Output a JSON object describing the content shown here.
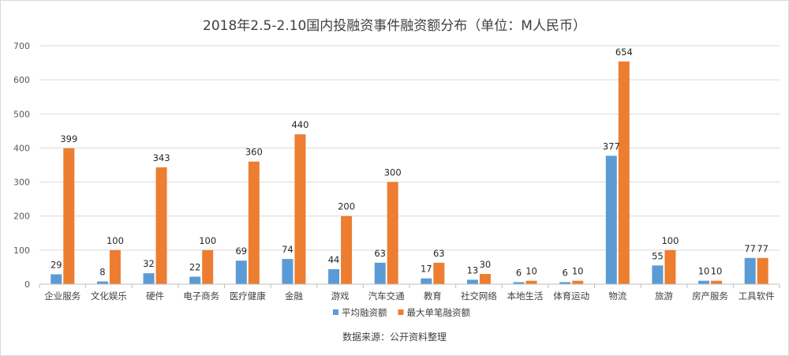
{
  "chart_data": {
    "type": "bar",
    "title": "2018年2.5-2.10国内投融资事件融资额分布（单位：M人民币）",
    "source": "数据来源：公开资料整理",
    "categories": [
      "企业服务",
      "文化娱乐",
      "硬件",
      "电子商务",
      "医疗健康",
      "金融",
      "游戏",
      "汽车交通",
      "教育",
      "社交网络",
      "本地生活",
      "体育运动",
      "物流",
      "旅游",
      "房产服务",
      "工具软件"
    ],
    "series": [
      {
        "name": "平均融资额",
        "color": "#5b9bd5",
        "values": [
          29,
          8,
          32,
          22,
          69,
          74,
          44,
          63,
          17,
          13,
          6,
          6,
          377,
          55,
          10,
          77
        ]
      },
      {
        "name": "最大单笔融资额",
        "color": "#ed7d31",
        "values": [
          399,
          100,
          343,
          100,
          360,
          440,
          200,
          300,
          63,
          30,
          10,
          10,
          654,
          100,
          10,
          77
        ]
      }
    ],
    "ylim": [
      0,
      700
    ],
    "yticks": [
      0,
      100,
      200,
      300,
      400,
      500,
      600,
      700
    ],
    "grid": true,
    "legend": "bottom"
  }
}
